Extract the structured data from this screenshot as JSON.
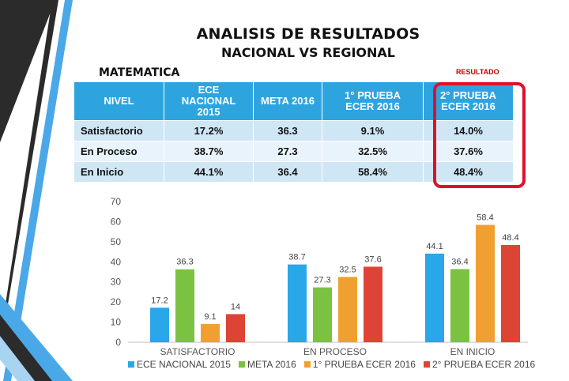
{
  "title": "ANALISIS DE RESULTADOS",
  "subtitle": "NACIONAL VS REGIONAL",
  "subject": "MATEMATICA",
  "result_label": "RESULTADO",
  "table": {
    "headers": [
      "NIVEL",
      "ECE\nNACIONAL\n2015",
      "META 2016",
      "1° PRUEBA\nECER 2016",
      "2° PRUEBA\nECER 2016"
    ],
    "rows": [
      [
        "Satisfactorio",
        "17.2%",
        "36.3",
        "9.1%",
        "14.0%"
      ],
      [
        "En Proceso",
        "38.7%",
        "27.3",
        "32.5%",
        "37.6%"
      ],
      [
        "En Inicio",
        "44.1%",
        "36.4",
        "58.4%",
        "48.4%"
      ]
    ]
  },
  "colors": {
    "header_bg": "#2ea4de",
    "highlight": "#e0102a",
    "ece": "#2aa7e8",
    "meta": "#7cc242",
    "prueba1": "#f0a030",
    "prueba2": "#dd4436"
  },
  "chart_data": {
    "type": "bar",
    "categories": [
      "SATISFACTORIO",
      "EN PROCESO",
      "EN INICIO"
    ],
    "series": [
      {
        "name": "ECE NACIONAL 2015",
        "values": [
          17.2,
          38.7,
          44.1
        ],
        "color": "#2aa7e8"
      },
      {
        "name": "META 2016",
        "values": [
          36.3,
          27.3,
          36.4
        ],
        "color": "#7cc242"
      },
      {
        "name": "1° PRUEBA ECER 2016",
        "values": [
          9.1,
          32.5,
          58.4
        ],
        "color": "#f0a030"
      },
      {
        "name": "2° PRUEBA ECER 2016",
        "values": [
          14,
          37.6,
          48.4
        ],
        "color": "#dd4436"
      }
    ],
    "ylim": [
      0,
      70
    ],
    "yticks": [
      0,
      10,
      20,
      30,
      40,
      50,
      60,
      70
    ],
    "grid": false,
    "legend": "bottom"
  }
}
